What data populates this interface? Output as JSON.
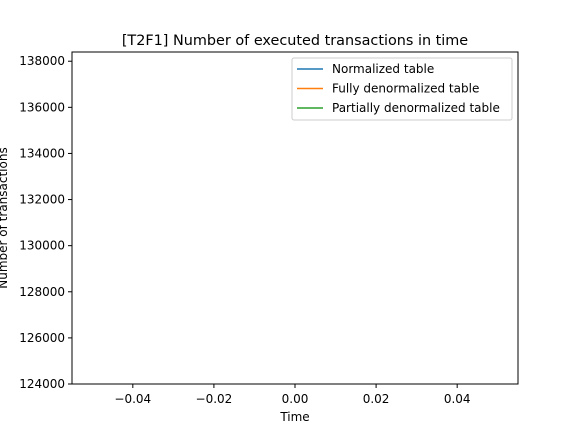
{
  "chart_data": {
    "type": "line",
    "title": "[T2F1] Number of executed transactions in time",
    "xlabel": "Time",
    "ylabel": "Number of transactions",
    "xlim": [
      -0.055,
      0.055
    ],
    "ylim": [
      124000,
      138400
    ],
    "xticks": [
      -0.04,
      -0.02,
      0.0,
      0.02,
      0.04
    ],
    "xtick_labels": [
      "−0.04",
      "−0.02",
      "0.00",
      "0.02",
      "0.04"
    ],
    "yticks": [
      124000,
      126000,
      128000,
      130000,
      132000,
      134000,
      136000,
      138000
    ],
    "ytick_labels": [
      "124000",
      "126000",
      "128000",
      "130000",
      "132000",
      "134000",
      "136000",
      "138000"
    ],
    "grid": false,
    "legend_position": "top-right",
    "series": [
      {
        "name": "Normalized table",
        "color": "#1f77b4",
        "x": [],
        "y": []
      },
      {
        "name": "Fully denormalized table",
        "color": "#ff7f0e",
        "x": [],
        "y": []
      },
      {
        "name": "Partially denormalized table",
        "color": "#2ca02c",
        "x": [],
        "y": []
      }
    ]
  }
}
